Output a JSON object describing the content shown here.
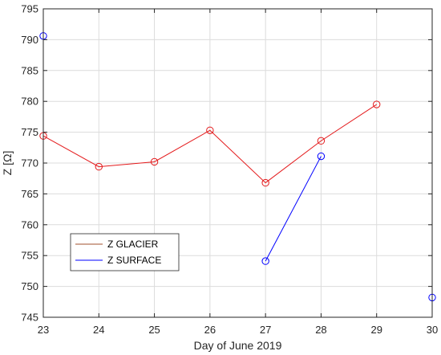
{
  "chart_data": {
    "type": "line",
    "title": "",
    "xlabel": "Day of June 2019",
    "ylabel": "Z [Ω]",
    "xlim": [
      23,
      30
    ],
    "ylim": [
      745,
      795
    ],
    "xticks": [
      23,
      24,
      25,
      26,
      27,
      28,
      29,
      30
    ],
    "yticks": [
      745,
      750,
      755,
      760,
      765,
      770,
      775,
      780,
      785,
      790,
      795
    ],
    "grid": true,
    "legend_position": "lower-left",
    "series": [
      {
        "name": "Z GLACIER",
        "color": "#e41a1c",
        "legend_color": "#a0522d",
        "marker": "circle",
        "points": [
          {
            "x": 23,
            "y": 774.4,
            "connected": true
          },
          {
            "x": 24,
            "y": 769.4,
            "connected": true
          },
          {
            "x": 25,
            "y": 770.2,
            "connected": true
          },
          {
            "x": 26,
            "y": 775.3,
            "connected": true
          },
          {
            "x": 27,
            "y": 766.8,
            "connected": true
          },
          {
            "x": 28,
            "y": 773.6,
            "connected": true
          },
          {
            "x": 29,
            "y": 779.5,
            "connected": true
          }
        ]
      },
      {
        "name": "Z SURFACE",
        "color": "#0000ff",
        "legend_color": "#0000ff",
        "marker": "circle",
        "points": [
          {
            "x": 23,
            "y": 790.6,
            "connected": false
          },
          {
            "x": 27,
            "y": 754.1,
            "connected": true
          },
          {
            "x": 28,
            "y": 771.1,
            "connected": true
          },
          {
            "x": 30,
            "y": 748.2,
            "connected": false
          }
        ]
      }
    ]
  }
}
